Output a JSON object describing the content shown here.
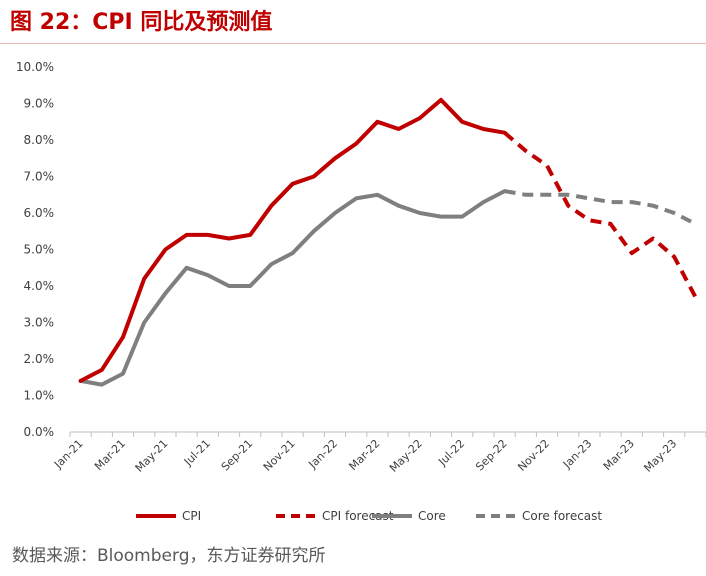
{
  "figure": {
    "title": "图 22：CPI 同比及预测值",
    "source": "数据来源：Bloomberg，东方证券研究所"
  },
  "chart_data": {
    "type": "line",
    "x": [
      "Jan-21",
      "Feb-21",
      "Mar-21",
      "Apr-21",
      "May-21",
      "Jun-21",
      "Jul-21",
      "Aug-21",
      "Sep-21",
      "Oct-21",
      "Nov-21",
      "Dec-21",
      "Jan-22",
      "Feb-22",
      "Mar-22",
      "Apr-22",
      "May-22",
      "Jun-22",
      "Jul-22",
      "Aug-22",
      "Sep-22",
      "Oct-22",
      "Nov-22",
      "Dec-22",
      "Jan-23",
      "Feb-23",
      "Mar-23",
      "Apr-23",
      "May-23",
      "Jun-23"
    ],
    "x_tick_labels": [
      "Jan-21",
      "Mar-21",
      "May-21",
      "Jul-21",
      "Sep-21",
      "Nov-21",
      "Jan-22",
      "Mar-22",
      "May-22",
      "Jul-22",
      "Sep-22",
      "Nov-22",
      "Jan-23",
      "Mar-23",
      "May-23"
    ],
    "y_tick_labels": [
      "0.0%",
      "1.0%",
      "2.0%",
      "3.0%",
      "4.0%",
      "5.0%",
      "6.0%",
      "7.0%",
      "8.0%",
      "9.0%",
      "10.0%"
    ],
    "ylim": [
      0,
      10
    ],
    "grid": false,
    "legend_position": "bottom",
    "series": [
      {
        "name": "CPI",
        "color": "#c00000",
        "dash": "solid",
        "values": [
          1.4,
          1.7,
          2.6,
          4.2,
          5.0,
          5.4,
          5.4,
          5.3,
          5.4,
          6.2,
          6.8,
          7.0,
          7.5,
          7.9,
          8.5,
          8.3,
          8.6,
          9.1,
          8.5,
          8.3,
          8.2,
          null,
          null,
          null,
          null,
          null,
          null,
          null,
          null,
          null
        ]
      },
      {
        "name": "CPI forecast",
        "color": "#c00000",
        "dash": "dashed",
        "values": [
          null,
          null,
          null,
          null,
          null,
          null,
          null,
          null,
          null,
          null,
          null,
          null,
          null,
          null,
          null,
          null,
          null,
          null,
          null,
          null,
          8.2,
          7.7,
          7.3,
          6.2,
          5.8,
          5.7,
          4.9,
          5.3,
          4.8,
          3.7
        ]
      },
      {
        "name": "Core",
        "color": "#7f7f7f",
        "dash": "solid",
        "values": [
          1.4,
          1.3,
          1.6,
          3.0,
          3.8,
          4.5,
          4.3,
          4.0,
          4.0,
          4.6,
          4.9,
          5.5,
          6.0,
          6.4,
          6.5,
          6.2,
          6.0,
          5.9,
          5.9,
          6.3,
          6.6,
          null,
          null,
          null,
          null,
          null,
          null,
          null,
          null,
          null
        ]
      },
      {
        "name": "Core forecast",
        "color": "#7f7f7f",
        "dash": "dashed",
        "values": [
          null,
          null,
          null,
          null,
          null,
          null,
          null,
          null,
          null,
          null,
          null,
          null,
          null,
          null,
          null,
          null,
          null,
          null,
          null,
          null,
          6.6,
          6.5,
          6.5,
          6.5,
          6.4,
          6.3,
          6.3,
          6.2,
          6.0,
          5.7
        ]
      }
    ]
  }
}
